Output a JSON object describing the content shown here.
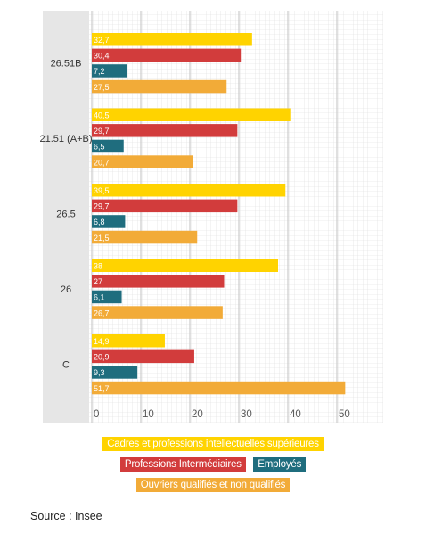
{
  "chart_data": {
    "type": "bar",
    "orientation": "horizontal",
    "categories": [
      "26.51B",
      "21.51 (A+B)",
      "26.5",
      "26",
      "C"
    ],
    "series": [
      {
        "name": "Cadres et professions intellectuelles supérieures",
        "color": "#ffd300",
        "values": [
          32.7,
          40.5,
          39.5,
          38,
          14.9
        ],
        "labels": [
          "32,7",
          "40,5",
          "39,5",
          "38",
          "14,9"
        ]
      },
      {
        "name": "Professions Intermédiaires",
        "color": "#d23c3c",
        "values": [
          30.4,
          29.7,
          29.7,
          27,
          20.9
        ],
        "labels": [
          "30,4",
          "29,7",
          "29,7",
          "27",
          "20,9"
        ]
      },
      {
        "name": "Employés",
        "color": "#1f6d7e",
        "values": [
          7.2,
          6.5,
          6.8,
          6.1,
          9.3
        ],
        "labels": [
          "7,2",
          "6,5",
          "6,8",
          "6,1",
          "9,3"
        ]
      },
      {
        "name": "Ouvriers qualifiés et non qualifiés",
        "color": "#f2ab38",
        "values": [
          27.5,
          20.7,
          21.5,
          26.7,
          51.7
        ],
        "labels": [
          "27,5",
          "20,7",
          "21,5",
          "26,7",
          "51,7"
        ]
      }
    ],
    "xlim": [
      0,
      60
    ],
    "xticks": [
      "0",
      "10",
      "20",
      "30",
      "40",
      "50"
    ],
    "grid": true,
    "legend_position": "bottom"
  },
  "legend": {
    "row1": [
      "Cadres et professions intellectuelles supérieures"
    ],
    "row2": [
      "Professions Intermédiaires",
      "Employés"
    ],
    "row3": [
      "Ouvriers qualifiés et non qualifiés"
    ]
  },
  "source": "Source : Insee"
}
